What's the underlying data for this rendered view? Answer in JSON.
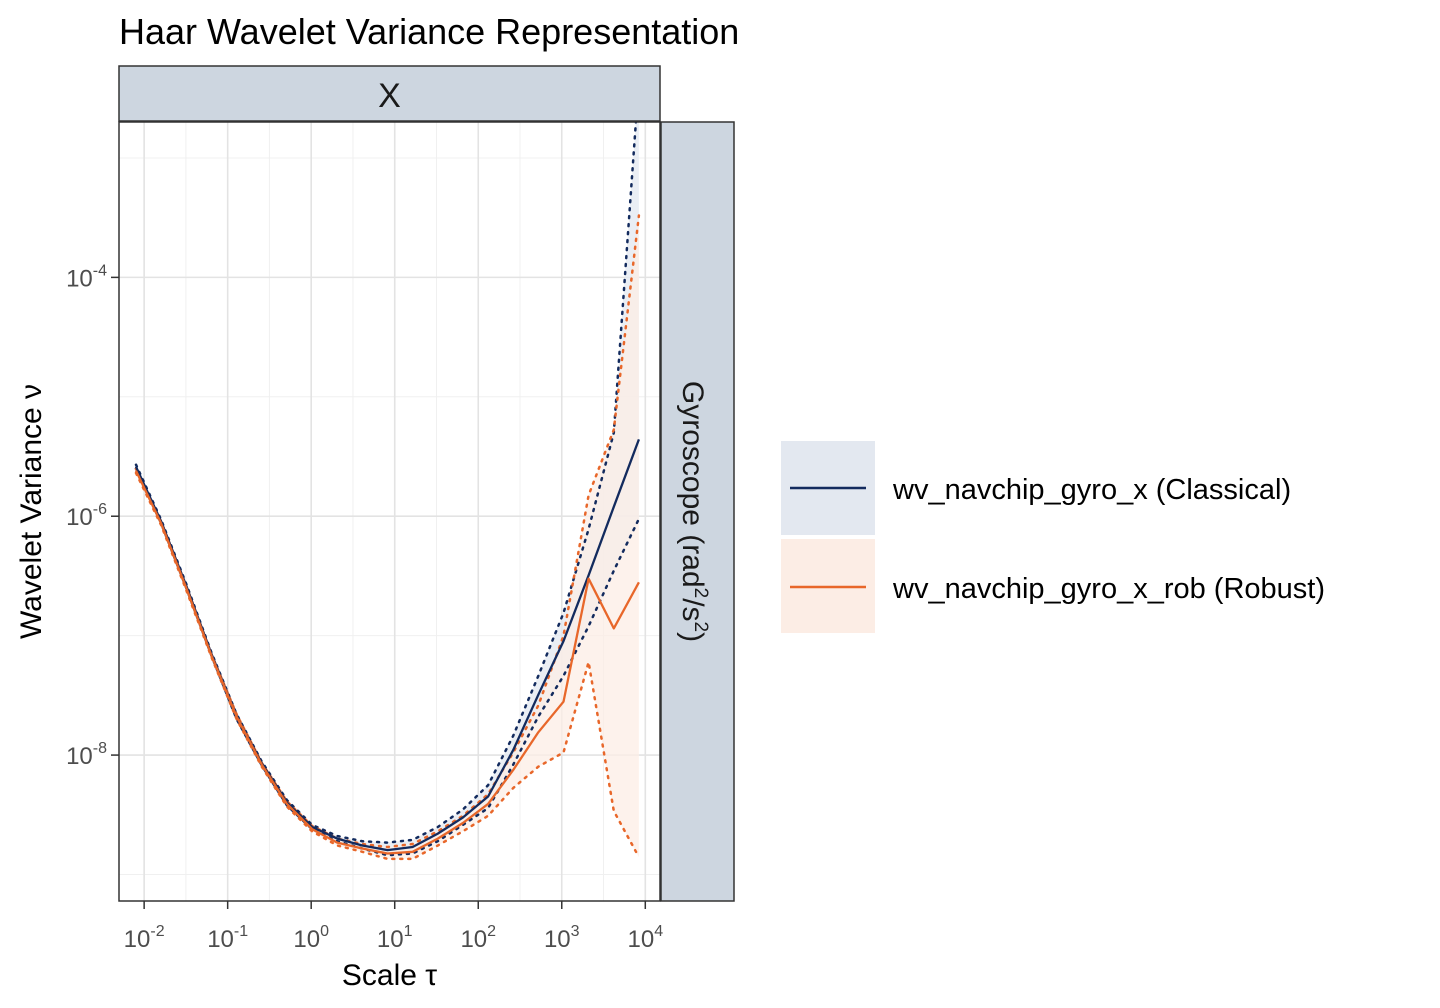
{
  "chart_data": {
    "type": "line",
    "title": "Haar Wavelet Variance Representation",
    "xlabel": "Scale τ",
    "ylabel": "Wavelet Variance ν",
    "facet_col_label": "X",
    "facet_row_label": {
      "main": "Gyroscope (rad",
      "sup1": "2",
      "mid": "/s",
      "sup2": "2",
      "end": ")"
    },
    "x_scale": "log10",
    "y_scale": "log10",
    "xlim": [
      0.005,
      15000
    ],
    "ylim": [
      6e-10,
      0.002
    ],
    "x_ticks": [
      {
        "value": 0.01,
        "base": "10",
        "exp": "-2"
      },
      {
        "value": 0.1,
        "base": "10",
        "exp": "-1"
      },
      {
        "value": 1,
        "base": "10",
        "exp": "0"
      },
      {
        "value": 10,
        "base": "10",
        "exp": "1"
      },
      {
        "value": 100,
        "base": "10",
        "exp": "2"
      },
      {
        "value": 1000,
        "base": "10",
        "exp": "3"
      },
      {
        "value": 10000,
        "base": "10",
        "exp": "4"
      }
    ],
    "y_ticks": [
      {
        "value": 1e-08,
        "base": "10",
        "exp": "-8"
      },
      {
        "value": 1e-06,
        "base": "10",
        "exp": "-6"
      },
      {
        "value": 0.0001,
        "base": "10",
        "exp": "-4"
      }
    ],
    "grid": true,
    "legend_position": "right",
    "x": [
      0.008,
      0.016,
      0.032,
      0.064,
      0.128,
      0.256,
      0.512,
      1.024,
      2.048,
      4.096,
      8.192,
      16.384,
      32.768,
      65.536,
      131.072,
      262.144,
      524.288,
      1048.576,
      2097.152,
      4194.304,
      8388.608
    ],
    "series": [
      {
        "name": "wv_navchip_gyro_x (Classical)",
        "color": "#132B5E",
        "fill": "#E3E8F0",
        "values": [
          2.6e-06,
          9e-07,
          2.6e-07,
          7e-08,
          2.1e-08,
          8.5e-09,
          4e-09,
          2.5e-09,
          2e-09,
          1.75e-09,
          1.6e-09,
          1.7e-09,
          2.2e-09,
          3e-09,
          4.5e-09,
          1.1e-08,
          3.2e-08,
          9e-08,
          3.2e-07,
          1.2e-06,
          4.4e-06
        ],
        "upper": [
          2.7e-06,
          9.3e-07,
          2.7e-07,
          7.2e-08,
          2.2e-08,
          8.8e-09,
          4.2e-09,
          2.6e-09,
          2.1e-09,
          1.9e-09,
          1.85e-09,
          1.95e-09,
          2.5e-09,
          3.5e-09,
          5.6e-09,
          1.45e-08,
          4.6e-08,
          1.55e-07,
          7.8e-07,
          5e-06,
          0.0045
        ],
        "lower": [
          2.5e-06,
          8.7e-07,
          2.5e-07,
          6.8e-08,
          2e-08,
          8.2e-09,
          3.8e-09,
          2.4e-09,
          1.9e-09,
          1.65e-09,
          1.45e-09,
          1.5e-09,
          1.9e-09,
          2.6e-09,
          3.6e-09,
          8.3e-09,
          2.1e-08,
          4.6e-08,
          1.2e-07,
          3.5e-07,
          9.5e-07
        ]
      },
      {
        "name": "wv_navchip_gyro_x_rob (Robust)",
        "color": "#E8672A",
        "fill": "#FCEDE5",
        "values": [
          2.4e-06,
          8.7e-07,
          2.5e-07,
          6.8e-08,
          2.1e-08,
          8.3e-09,
          3.9e-09,
          2.4e-09,
          1.85e-09,
          1.65e-09,
          1.5e-09,
          1.55e-09,
          2e-09,
          2.7e-09,
          3.9e-09,
          7.5e-09,
          1.55e-08,
          2.8e-08,
          3e-07,
          1.15e-07,
          2.8e-07
        ],
        "upper": [
          2.5e-06,
          9e-07,
          2.6e-07,
          7e-08,
          2.2e-08,
          8.6e-09,
          4.1e-09,
          2.55e-09,
          2e-09,
          1.8e-09,
          1.7e-09,
          1.8e-09,
          2.3e-09,
          3.1e-09,
          4.7e-09,
          1.05e-08,
          2.6e-08,
          1e-07,
          1.5e-06,
          5.3e-06,
          0.00033
        ],
        "lower": [
          2.3e-06,
          8.4e-07,
          2.4e-07,
          6.6e-08,
          2e-08,
          8e-09,
          3.7e-09,
          2.3e-09,
          1.75e-09,
          1.55e-09,
          1.35e-09,
          1.35e-09,
          1.75e-09,
          2.3e-09,
          3.1e-09,
          5.3e-09,
          8e-09,
          1.05e-08,
          6e-08,
          3.4e-09,
          1.4e-09
        ]
      }
    ]
  }
}
